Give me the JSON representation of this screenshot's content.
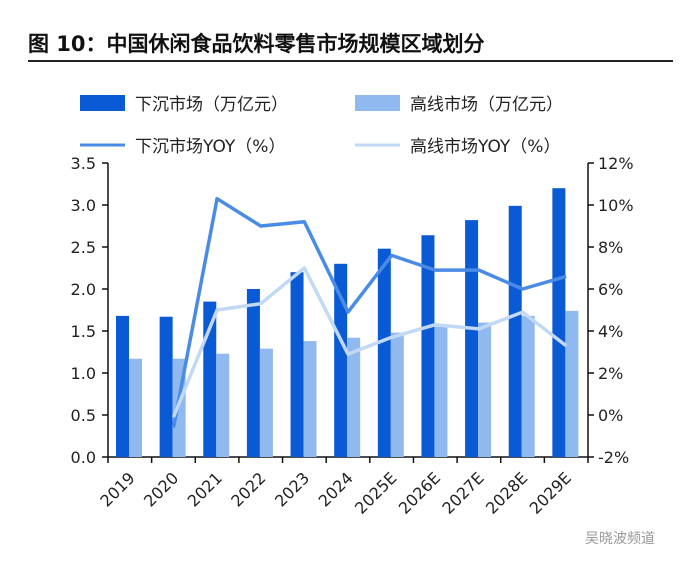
{
  "chart_data": {
    "type": "bar+line",
    "title": "图 10：中国休闲食品饮料零售市场规模区域划分",
    "categories": [
      "2019",
      "2020",
      "2021",
      "2022",
      "2023",
      "2024",
      "2025E",
      "2026E",
      "2027E",
      "2028E",
      "2029E"
    ],
    "series": [
      {
        "name": "下沉市场（万亿元）",
        "type": "bar",
        "axis": "left",
        "color": "#0a5ad6",
        "values": [
          1.68,
          1.67,
          1.85,
          2.0,
          2.2,
          2.3,
          2.48,
          2.64,
          2.82,
          2.99,
          3.2
        ]
      },
      {
        "name": "高线市场（万亿元）",
        "type": "bar",
        "axis": "left",
        "color": "#90b9f0",
        "values": [
          1.17,
          1.17,
          1.23,
          1.29,
          1.38,
          1.42,
          1.48,
          1.55,
          1.6,
          1.68,
          1.74
        ]
      },
      {
        "name": "下沉市场YOY（%）",
        "type": "line",
        "axis": "right",
        "color": "#4a8be6",
        "values": [
          null,
          -0.6,
          10.3,
          9.0,
          9.2,
          4.9,
          7.6,
          6.9,
          6.9,
          6.0,
          6.6
        ]
      },
      {
        "name": "高线市场YOY（%）",
        "type": "line",
        "axis": "right",
        "color": "#c2d9f5",
        "values": [
          null,
          -0.1,
          5.0,
          5.3,
          7.0,
          2.9,
          3.7,
          4.3,
          4.1,
          4.9,
          3.3
        ]
      }
    ],
    "left_axis": {
      "ylim": [
        0,
        3.5
      ],
      "ticks": [
        "0.0",
        "0.5",
        "1.0",
        "1.5",
        "2.0",
        "2.5",
        "3.0",
        "3.5"
      ]
    },
    "right_axis": {
      "ylim": [
        -2,
        12
      ],
      "ticks": [
        "-2%",
        "0%",
        "2%",
        "4%",
        "6%",
        "8%",
        "10%",
        "12%"
      ]
    },
    "grid": false,
    "legend_position": "top"
  },
  "watermark": "吴晓波频道"
}
